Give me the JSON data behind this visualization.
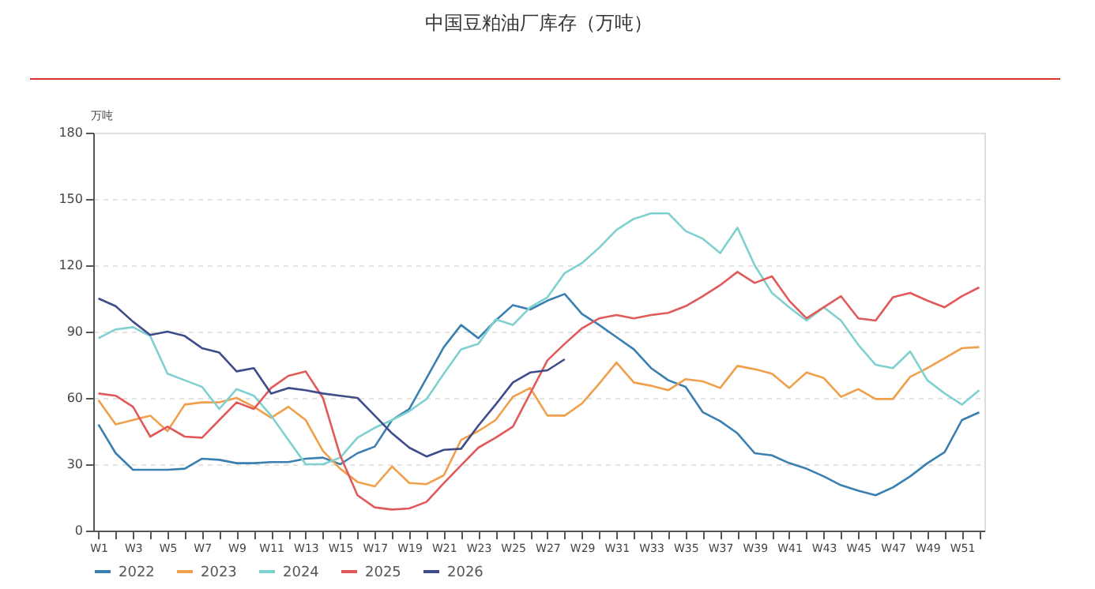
{
  "chart_data": {
    "type": "line",
    "title": "中国豆粕油厂库存（万吨）",
    "ylabel": "万吨",
    "categories": [
      "W1",
      null,
      "W3",
      null,
      "W5",
      null,
      "W7",
      null,
      "W9",
      null,
      "W11",
      null,
      "W13",
      null,
      "W15",
      null,
      "W17",
      null,
      "W19",
      null,
      "W21",
      null,
      "W23",
      null,
      "W25",
      null,
      "W27",
      null,
      "W29",
      null,
      "W31",
      null,
      "W33",
      null,
      "W35",
      null,
      "W37",
      null,
      "W39",
      null,
      "W41",
      null,
      "W43",
      null,
      "W45",
      null,
      "W47",
      null,
      "W49",
      null,
      "W51",
      null
    ],
    "ylim": [
      0,
      180
    ],
    "yticks": [
      0,
      30,
      60,
      90,
      120,
      150,
      180
    ],
    "grid": "y",
    "legend": "bottom",
    "marker": "none",
    "line_style": "solid",
    "series": [
      {
        "name": "2022",
        "color": "#3a7fb0",
        "values": [
          48,
          35,
          27.5,
          27.5,
          27.5,
          28,
          32.5,
          32,
          30.5,
          30.5,
          31,
          31,
          32.5,
          33,
          30,
          35,
          38,
          50,
          55,
          69,
          83,
          93,
          87,
          95,
          102,
          100,
          104,
          107,
          98,
          93,
          87.5,
          82,
          73.5,
          68,
          65,
          53.5,
          49.5,
          44,
          35,
          34,
          30.5,
          28,
          24.5,
          20.5,
          18,
          16,
          19.5,
          24.5,
          30.5,
          35.5,
          50,
          53.5
        ]
      },
      {
        "name": "2023",
        "color": "#f0a04b",
        "values": [
          59,
          48,
          50,
          52,
          45,
          57,
          58,
          58,
          60,
          56,
          51,
          56,
          50,
          36,
          28,
          22,
          20,
          29,
          21.5,
          21,
          25,
          41,
          45,
          50,
          60.5,
          64.5,
          52,
          52,
          57.5,
          66.5,
          76,
          67,
          65.5,
          63.5,
          68.5,
          67.5,
          64.5,
          74.5,
          73,
          71,
          64.5,
          71.5,
          69,
          60.5,
          64,
          59.5,
          59.5,
          69.5,
          73.5,
          78,
          82.5,
          83
        ]
      },
      {
        "name": "2024",
        "color": "#7fd1cf",
        "values": [
          87,
          91,
          92,
          88,
          71,
          68,
          65,
          55,
          64,
          61,
          52,
          41,
          30,
          30,
          33,
          42,
          46.5,
          50,
          54,
          59.5,
          71,
          82,
          84.5,
          95.5,
          93,
          101,
          105.5,
          116.5,
          121,
          128,
          136,
          141,
          143.5,
          143.5,
          135.5,
          132,
          125.5,
          137,
          120,
          107.5,
          101,
          95,
          101,
          95,
          84,
          75,
          73.5,
          81,
          68,
          62,
          57,
          63.5
        ]
      },
      {
        "name": "2025",
        "color": "#e05a5a",
        "values": [
          62,
          61,
          56,
          42.5,
          47,
          42.5,
          42,
          50,
          58,
          55,
          64.5,
          70,
          72,
          60,
          34,
          16,
          10.5,
          9.5,
          10,
          13,
          21.5,
          29.5,
          37.5,
          42,
          47,
          62,
          77,
          84.5,
          91.5,
          96,
          97.5,
          96,
          97.5,
          98.5,
          101.5,
          106,
          111,
          117,
          112,
          115,
          104,
          96,
          101,
          106,
          96,
          95,
          105.5,
          107.5,
          104,
          101,
          106,
          110
        ]
      },
      {
        "name": "2026",
        "color": "#3e4c8a",
        "values": [
          105,
          101.5,
          94.5,
          88.5,
          90,
          88,
          82.5,
          80.5,
          72,
          73.5,
          62,
          64.5,
          63.5,
          62,
          61,
          60,
          52,
          44,
          37.5,
          33.5,
          36.5,
          37,
          47.5,
          57,
          67,
          71.5,
          72.5,
          77.5,
          null,
          null,
          null,
          null,
          null,
          null,
          null,
          null,
          null,
          null,
          null,
          null,
          null,
          null,
          null,
          null,
          null,
          null,
          null,
          null,
          null,
          null,
          null,
          null
        ]
      }
    ]
  }
}
